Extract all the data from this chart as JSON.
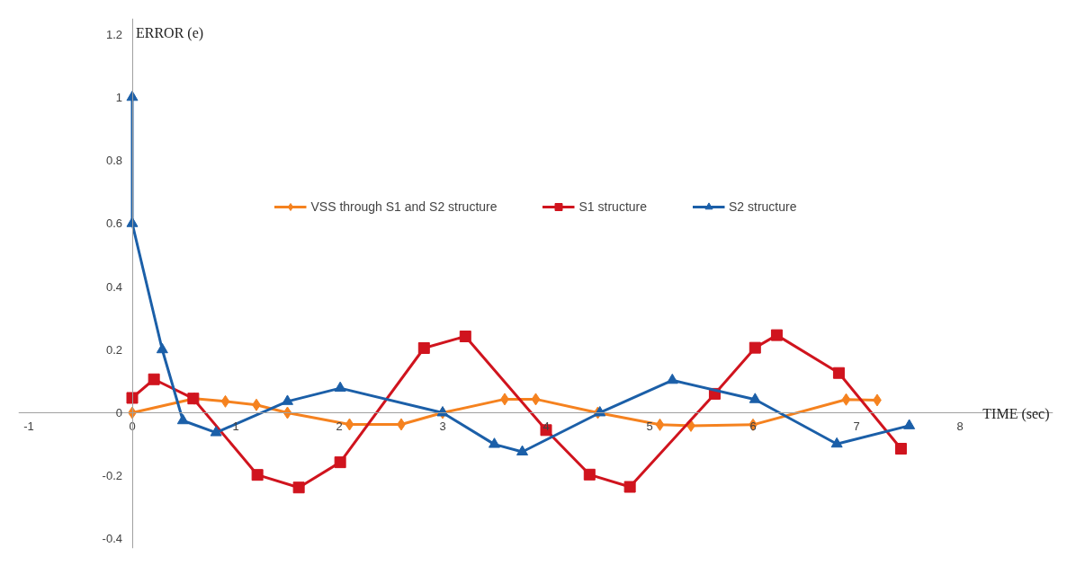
{
  "chart_data": {
    "type": "line",
    "xlabel": "TIME (sec)",
    "ylabel": "ERROR (e)",
    "xlim": [
      -1.1,
      8.9
    ],
    "ylim": [
      -0.43,
      1.25
    ],
    "xticks": [
      -1,
      0,
      1,
      2,
      3,
      4,
      5,
      6,
      7,
      8
    ],
    "yticks": [
      -0.4,
      -0.2,
      0,
      0.2,
      0.4,
      0.6,
      0.8,
      1,
      1.2
    ],
    "grid": false,
    "legend": "top",
    "series": [
      {
        "name": "VSS through S1 and S2 structure",
        "color": "#f5821f",
        "marker": "diamond",
        "x": [
          0,
          0.6,
          0.9,
          1.2,
          1.5,
          2.1,
          2.6,
          3.0,
          3.6,
          3.9,
          4.5,
          5.1,
          5.4,
          6.0,
          6.9,
          7.2
        ],
        "values": [
          0,
          0.045,
          0.036,
          0.025,
          0,
          -0.037,
          -0.037,
          0,
          0.043,
          0.043,
          0,
          -0.038,
          -0.041,
          -0.038,
          0.042,
          0.04
        ]
      },
      {
        "name": "S1 structure",
        "color": "#d0141e",
        "marker": "square",
        "x": [
          0,
          0.21,
          0.59,
          1.21,
          1.61,
          2.01,
          2.82,
          3.22,
          4.0,
          4.42,
          4.81,
          5.63,
          6.02,
          6.23,
          6.83,
          7.43
        ],
        "values": [
          0.047,
          0.106,
          0.045,
          -0.197,
          -0.237,
          -0.157,
          0.205,
          0.242,
          -0.055,
          -0.196,
          -0.235,
          0.06,
          0.206,
          0.246,
          0.126,
          -0.114
        ]
      },
      {
        "name": "S2 structure",
        "color": "#1b5fa8",
        "marker": "triangle",
        "x": [
          0,
          0.0,
          0.29,
          0.49,
          0.81,
          1.5,
          2.01,
          3.0,
          3.5,
          3.77,
          4.52,
          5.22,
          6.02,
          6.81,
          7.51
        ],
        "values": [
          1.0,
          0.6,
          0.2,
          -0.025,
          -0.063,
          0.036,
          0.078,
          0,
          -0.1,
          -0.124,
          0,
          0.103,
          0.042,
          -0.099,
          -0.041
        ]
      }
    ]
  }
}
